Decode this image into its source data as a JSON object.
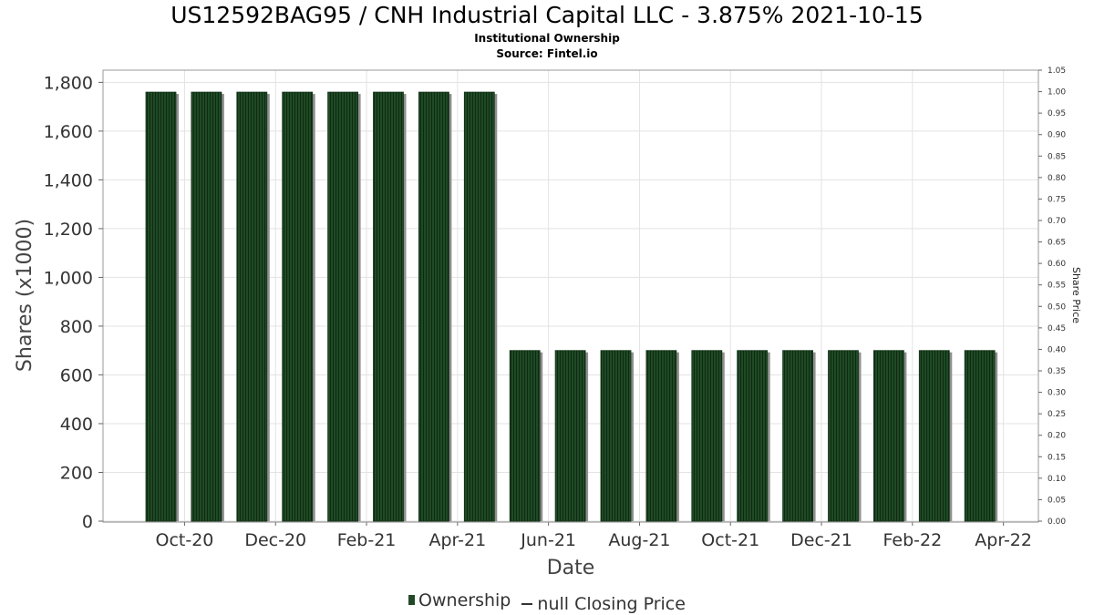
{
  "title": "US12592BAG95 / CNH Industrial Capital LLC - 3.875% 2021-10-15",
  "subtitle1": "Institutional Ownership",
  "subtitle2": "Source: Fintel.io",
  "legend": {
    "ownership": "Ownership",
    "price": "null Closing Price"
  },
  "colors": {
    "bar": "#1e4a24",
    "bar_shadow": "#8f8f8f",
    "grid": "#e3e3e3",
    "plot_border": "#999999"
  },
  "chart_data": {
    "type": "bar",
    "title": "US12592BAG95 / CNH Industrial Capital LLC - 3.875% 2021-10-15",
    "xlabel": "Date",
    "ylabel": "Shares (x1000)",
    "y2label": "Share Price",
    "ylim": [
      0,
      1850
    ],
    "y2lim": [
      0,
      1.05
    ],
    "y_ticks": [
      "0",
      "200",
      "400",
      "600",
      "800",
      "1,000",
      "1,200",
      "1,400",
      "1,600",
      "1,800"
    ],
    "y_tick_values": [
      0,
      200,
      400,
      600,
      800,
      1000,
      1200,
      1400,
      1600,
      1800
    ],
    "y2_ticks": [
      "0.00",
      "0.05",
      "0.10",
      "0.15",
      "0.20",
      "0.25",
      "0.30",
      "0.35",
      "0.40",
      "0.45",
      "0.50",
      "0.55",
      "0.60",
      "0.65",
      "0.70",
      "0.75",
      "0.80",
      "0.85",
      "0.90",
      "0.95",
      "1.00",
      "1.05"
    ],
    "x_ticks": [
      "Oct-20",
      "Dec-20",
      "Feb-21",
      "Apr-21",
      "Jun-21",
      "Aug-21",
      "Oct-21",
      "Dec-21",
      "Feb-22",
      "Apr-22"
    ],
    "x_tick_index": [
      0.5,
      2.5,
      4.5,
      6.5,
      8.5,
      10.5,
      12.5,
      14.5,
      16.5,
      18.5
    ],
    "grid": true,
    "legend_position": "bottom",
    "series": [
      {
        "name": "Ownership",
        "values": [
          1760,
          1760,
          1760,
          1760,
          1760,
          1760,
          1760,
          1760,
          700,
          700,
          700,
          700,
          700,
          700,
          700,
          700,
          700,
          700,
          700
        ]
      }
    ]
  }
}
